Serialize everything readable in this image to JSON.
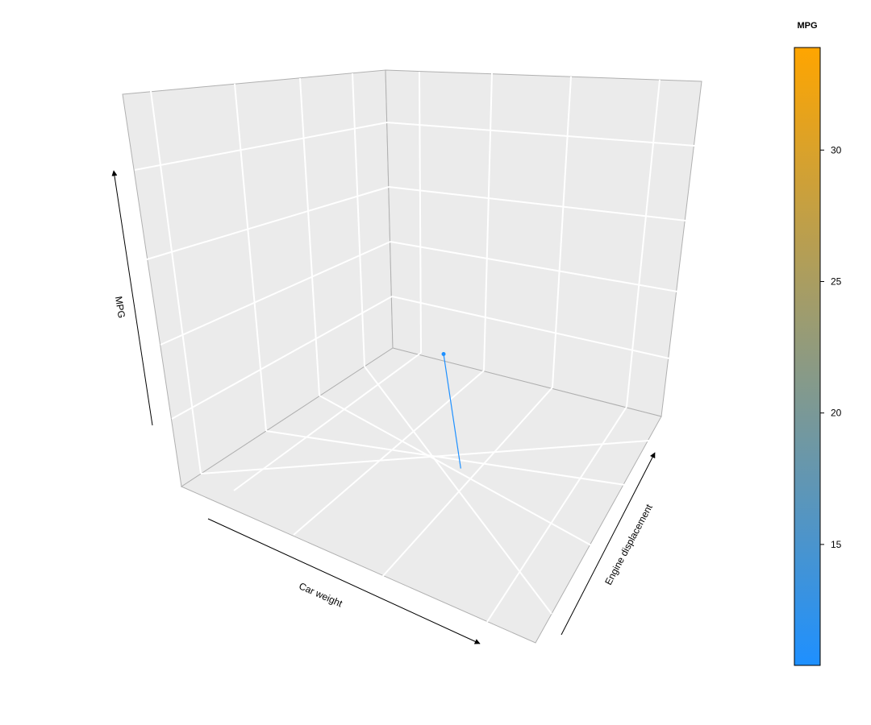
{
  "chart_data": {
    "type": "scatter",
    "xlabel": "Car weight",
    "ylabel": "Engine displacement",
    "zlabel": "MPG",
    "grid": true,
    "legend": {
      "title": "MPG",
      "placement": "right",
      "ticks": [
        15,
        20,
        25,
        30
      ],
      "range": [
        10.4,
        33.9
      ],
      "color_low": "#1e90ff",
      "color_high": "#ffa500"
    },
    "series": [
      {
        "x": [
          3.2
        ],
        "y": [
          230
        ],
        "z": [
          17.0
        ],
        "color": "#1e90ff",
        "drop_line": true
      }
    ]
  },
  "colors": {
    "panel": "#ebebeb",
    "grid": "#ffffff",
    "edge": "#b0b0b0",
    "axis_arrow": "#000000"
  }
}
